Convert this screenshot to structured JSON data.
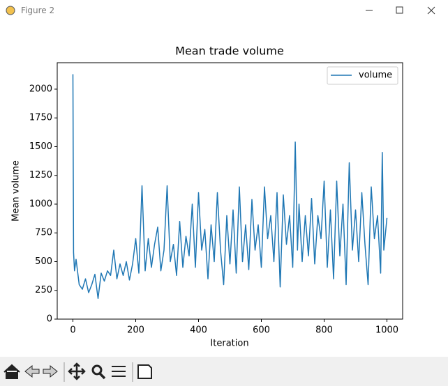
{
  "window": {
    "title": "Figure 2"
  },
  "chart_data": {
    "type": "line",
    "title": "Mean trade volume",
    "x_label": "Iteration",
    "y_label": "Mean volume",
    "x": [
      0,
      2,
      5,
      10,
      20,
      30,
      40,
      50,
      60,
      70,
      80,
      90,
      100,
      110,
      120,
      130,
      140,
      150,
      160,
      170,
      180,
      190,
      200,
      210,
      220,
      230,
      240,
      250,
      260,
      270,
      280,
      290,
      300,
      310,
      320,
      330,
      340,
      350,
      360,
      370,
      380,
      390,
      400,
      410,
      420,
      430,
      440,
      450,
      460,
      470,
      480,
      490,
      500,
      510,
      520,
      530,
      540,
      550,
      560,
      570,
      580,
      590,
      600,
      610,
      620,
      630,
      640,
      650,
      660,
      670,
      680,
      690,
      700,
      708,
      715,
      720,
      730,
      740,
      750,
      760,
      770,
      780,
      790,
      800,
      810,
      820,
      830,
      840,
      850,
      860,
      870,
      880,
      890,
      900,
      910,
      920,
      930,
      940,
      950,
      960,
      970,
      980,
      985,
      990,
      1000
    ],
    "series": [
      {
        "name": "volume",
        "color": "#1f77b4",
        "values": [
          2130,
          580,
          420,
          520,
          300,
          260,
          350,
          230,
          300,
          390,
          180,
          400,
          330,
          420,
          380,
          600,
          350,
          480,
          380,
          500,
          340,
          480,
          700,
          400,
          1160,
          420,
          700,
          450,
          650,
          800,
          420,
          600,
          1160,
          500,
          650,
          380,
          850,
          450,
          720,
          550,
          1000,
          450,
          1100,
          600,
          780,
          350,
          820,
          500,
          1100,
          600,
          300,
          900,
          480,
          950,
          400,
          1150,
          500,
          820,
          430,
          1040,
          600,
          820,
          450,
          1150,
          700,
          900,
          500,
          1100,
          280,
          1080,
          650,
          900,
          450,
          1540,
          600,
          1000,
          500,
          900,
          550,
          1050,
          480,
          900,
          700,
          1200,
          450,
          950,
          350,
          1200,
          550,
          1000,
          300,
          1360,
          600,
          950,
          500,
          1100,
          650,
          300,
          1150,
          700,
          900,
          400,
          1450,
          600,
          880
        ]
      }
    ],
    "xlim": [
      -50,
      1050
    ],
    "ylim": [
      0,
      2230
    ],
    "xticks": [
      0,
      200,
      400,
      600,
      800,
      1000
    ],
    "yticks": [
      0,
      250,
      500,
      750,
      1000,
      1250,
      1500,
      1750,
      2000
    ],
    "legend": "upper right"
  }
}
